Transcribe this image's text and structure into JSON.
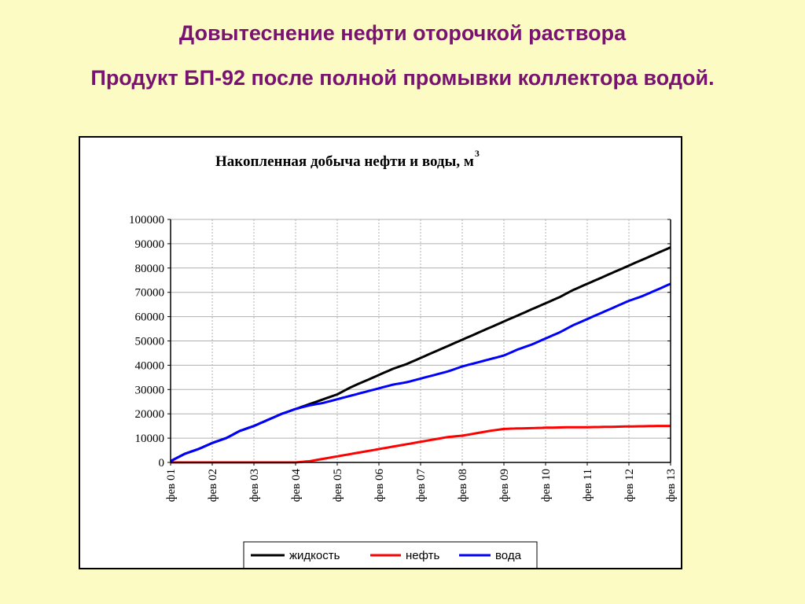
{
  "slide": {
    "title_line1": "Довытеснение нефти оторочкой раствора",
    "title_line2": "Продукт БП-92 после полной промывки коллектора водой.",
    "title_color": "#7a1272",
    "background": "#fdfbc4"
  },
  "chart_data": {
    "type": "line",
    "title": "Накопленная добыча нефти и воды, м",
    "title_superscript": "3",
    "xlabel": "",
    "ylabel": "",
    "ylim": [
      0,
      100000
    ],
    "yticks": [
      "0",
      "10000",
      "20000",
      "30000",
      "40000",
      "50000",
      "60000",
      "70000",
      "80000",
      "90000",
      "100000"
    ],
    "categories": [
      "фев 01",
      "фев 02",
      "фев 03",
      "фев 04",
      "фев 05",
      "фев 06",
      "фев 07",
      "фев 08",
      "фев 09",
      "фев 10",
      "фев 11",
      "фев 12",
      "фев 13"
    ],
    "x": [
      "фев 01",
      "июн 01",
      "окт 01",
      "фев 02",
      "июн 02",
      "окт 02",
      "фев 03",
      "июн 03",
      "окт 03",
      "фев 04",
      "июн 04",
      "окт 04",
      "фев 05",
      "июн 05",
      "окт 05",
      "фев 06",
      "июн 06",
      "окт 06",
      "фев 07",
      "июн 07",
      "окт 07",
      "фев 08",
      "июн 08",
      "окт 08",
      "фев 09",
      "июн 09",
      "окт 09",
      "фев 10",
      "июн 10",
      "окт 10",
      "фев 11",
      "июн 11",
      "окт 11",
      "фев 12",
      "июн 12",
      "окт 12",
      "фев 13"
    ],
    "grid": true,
    "legend_position": "bottom",
    "series": [
      {
        "name": "жидкость",
        "color": "#000000",
        "values": [
          500,
          3500,
          5500,
          8000,
          10000,
          13000,
          15000,
          17500,
          20000,
          22000,
          24000,
          26000,
          28000,
          31000,
          33500,
          36000,
          38500,
          40500,
          43000,
          45500,
          48000,
          50500,
          53000,
          55500,
          58000,
          60500,
          63000,
          65500,
          68000,
          71000,
          73500,
          76000,
          78500,
          81000,
          83500,
          86000,
          88500
        ]
      },
      {
        "name": "нефть",
        "color": "#ff0000",
        "values": [
          0,
          0,
          0,
          0,
          0,
          0,
          0,
          0,
          0,
          0,
          500,
          1500,
          2500,
          3500,
          4500,
          5500,
          6500,
          7500,
          8500,
          9500,
          10500,
          11000,
          12000,
          13000,
          13800,
          14000,
          14100,
          14300,
          14400,
          14500,
          14500,
          14600,
          14700,
          14800,
          14900,
          15000,
          15000
        ]
      },
      {
        "name": "вода",
        "color": "#0000ff",
        "values": [
          500,
          3500,
          5500,
          8000,
          10000,
          13000,
          15000,
          17500,
          20000,
          22000,
          23500,
          24500,
          26000,
          27500,
          29000,
          30500,
          32000,
          33000,
          34500,
          36000,
          37500,
          39500,
          41000,
          42500,
          44000,
          46500,
          48500,
          51000,
          53500,
          56500,
          59000,
          61500,
          64000,
          66500,
          68500,
          71000,
          73500
        ]
      }
    ]
  }
}
